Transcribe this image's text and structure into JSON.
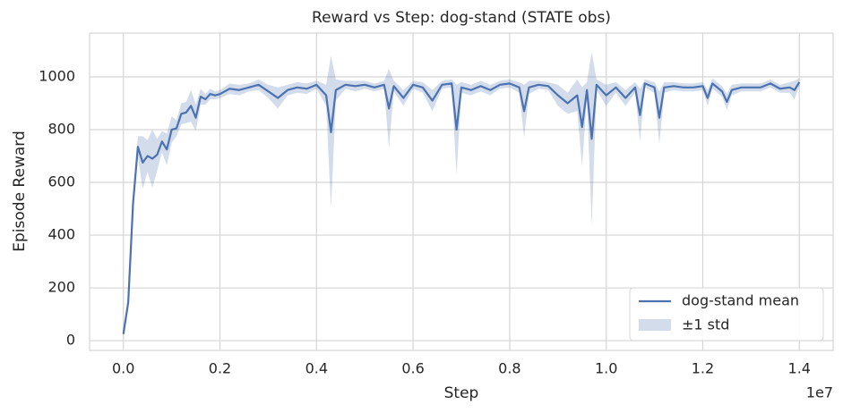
{
  "chart_data": {
    "type": "line",
    "title": "Reward vs Step: dog-stand (STATE obs)",
    "xlabel": "Step",
    "ylabel": "Episode Reward",
    "x_offset_label": "1e7",
    "x": [
      0,
      0.01,
      0.02,
      0.03,
      0.04,
      0.05,
      0.06,
      0.07,
      0.08,
      0.09,
      0.1,
      0.11,
      0.12,
      0.13,
      0.14,
      0.15,
      0.16,
      0.17,
      0.18,
      0.19,
      0.2,
      0.22,
      0.24,
      0.26,
      0.28,
      0.3,
      0.32,
      0.34,
      0.36,
      0.38,
      0.4,
      0.42,
      0.43,
      0.44,
      0.46,
      0.48,
      0.5,
      0.52,
      0.54,
      0.55,
      0.56,
      0.58,
      0.6,
      0.62,
      0.64,
      0.66,
      0.68,
      0.69,
      0.7,
      0.72,
      0.74,
      0.76,
      0.78,
      0.8,
      0.82,
      0.83,
      0.84,
      0.86,
      0.88,
      0.9,
      0.92,
      0.94,
      0.95,
      0.96,
      0.97,
      0.98,
      1.0,
      1.02,
      1.04,
      1.06,
      1.07,
      1.08,
      1.1,
      1.11,
      1.12,
      1.14,
      1.16,
      1.18,
      1.2,
      1.21,
      1.22,
      1.24,
      1.25,
      1.26,
      1.28,
      1.3,
      1.32,
      1.34,
      1.36,
      1.38,
      1.39,
      1.4
    ],
    "series": [
      {
        "name": "dog-stand mean",
        "color": "#4c72b0",
        "values": [
          25,
          145,
          520,
          735,
          675,
          700,
          690,
          705,
          755,
          725,
          800,
          805,
          860,
          865,
          890,
          845,
          925,
          915,
          935,
          930,
          935,
          955,
          950,
          960,
          970,
          945,
          920,
          950,
          960,
          955,
          970,
          930,
          790,
          950,
          970,
          965,
          970,
          960,
          970,
          880,
          965,
          920,
          970,
          960,
          910,
          970,
          975,
          800,
          960,
          950,
          965,
          950,
          970,
          975,
          960,
          870,
          960,
          970,
          965,
          930,
          900,
          930,
          810,
          950,
          765,
          970,
          930,
          960,
          920,
          960,
          855,
          975,
          960,
          845,
          960,
          965,
          960,
          960,
          965,
          920,
          975,
          945,
          905,
          950,
          960,
          960,
          960,
          975,
          955,
          960,
          950,
          980
        ]
      }
    ],
    "band": {
      "name": "±1 std",
      "color": "#4c72b0",
      "opacity": 0.25,
      "std": [
        5,
        10,
        30,
        40,
        100,
        60,
        110,
        60,
        40,
        60,
        50,
        30,
        40,
        40,
        60,
        50,
        30,
        20,
        20,
        15,
        15,
        20,
        20,
        15,
        20,
        25,
        40,
        20,
        20,
        20,
        15,
        40,
        290,
        40,
        15,
        20,
        15,
        15,
        15,
        150,
        20,
        30,
        15,
        20,
        40,
        15,
        15,
        170,
        20,
        20,
        20,
        20,
        15,
        15,
        20,
        100,
        25,
        15,
        15,
        40,
        40,
        60,
        150,
        30,
        330,
        20,
        40,
        20,
        30,
        20,
        100,
        15,
        20,
        100,
        20,
        15,
        15,
        15,
        15,
        30,
        20,
        20,
        30,
        20,
        15,
        15,
        15,
        15,
        15,
        20,
        35,
        15
      ]
    },
    "xlim": [
      -0.07,
      1.47
    ],
    "ylim": [
      -37,
      1166
    ],
    "xticks": [
      {
        "value": 0,
        "label": "0.0"
      },
      0.2,
      0.4,
      0.6,
      0.8,
      {
        "value": 1,
        "label": "1.0"
      },
      1.2,
      1.4
    ],
    "yticks": [
      0,
      200,
      400,
      600,
      800,
      1000
    ],
    "grid": true,
    "legend": "lower right"
  }
}
